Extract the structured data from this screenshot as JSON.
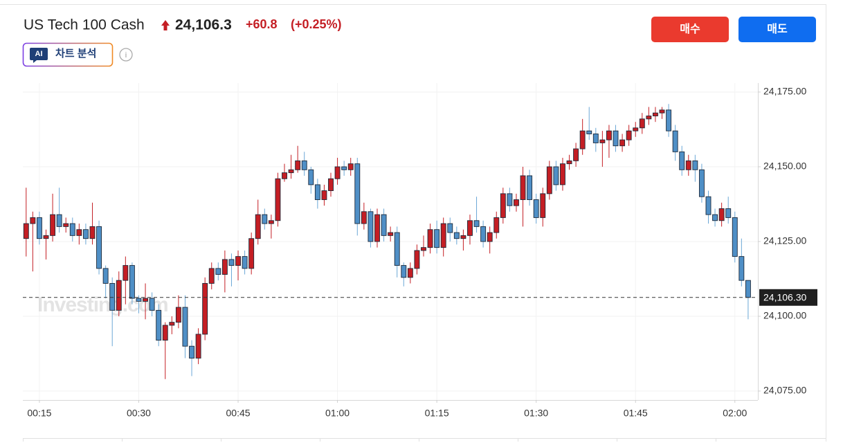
{
  "header": {
    "instrument": "US Tech 100 Cash",
    "price": "24,106.3",
    "change": "+60.8",
    "change_percent": "(+0.25%)",
    "buy_button": "매수",
    "sell_button": "매도",
    "ai_badge": "AI",
    "ai_label": "차트 분석",
    "info_icon": "i"
  },
  "chart_data": {
    "type": "candlestick",
    "watermark": "Investing.com",
    "x": [
      "00:13",
      "00:14",
      "00:15",
      "00:16",
      "00:17",
      "00:18",
      "00:19",
      "00:20",
      "00:21",
      "00:22",
      "00:23",
      "00:24",
      "00:25",
      "00:26",
      "00:27",
      "00:28",
      "00:29",
      "00:30",
      "00:31",
      "00:32",
      "00:33",
      "00:34",
      "00:35",
      "00:36",
      "00:37",
      "00:38",
      "00:39",
      "00:40",
      "00:41",
      "00:42",
      "00:43",
      "00:44",
      "00:45",
      "00:46",
      "00:47",
      "00:48",
      "00:49",
      "00:50",
      "00:51",
      "00:52",
      "00:53",
      "00:54",
      "00:55",
      "00:56",
      "00:57",
      "00:58",
      "00:59",
      "01:00",
      "01:01",
      "01:02",
      "01:03",
      "01:04",
      "01:05",
      "01:06",
      "01:07",
      "01:08",
      "01:09",
      "01:10",
      "01:11",
      "01:12",
      "01:13",
      "01:14",
      "01:15",
      "01:16",
      "01:17",
      "01:18",
      "01:19",
      "01:20",
      "01:21",
      "01:22",
      "01:23",
      "01:24",
      "01:25",
      "01:26",
      "01:27",
      "01:28",
      "01:29",
      "01:30",
      "01:31",
      "01:32",
      "01:33",
      "01:34",
      "01:35",
      "01:36",
      "01:37",
      "01:38",
      "01:39",
      "01:40",
      "01:41",
      "01:42",
      "01:43",
      "01:44",
      "01:45",
      "01:46",
      "01:47",
      "01:48",
      "01:49",
      "01:50",
      "01:51",
      "01:52",
      "01:53",
      "01:54",
      "01:55",
      "01:56",
      "01:57",
      "01:58",
      "01:59",
      "02:00",
      "02:01",
      "02:02"
    ],
    "xticks": [
      "00:15",
      "00:30",
      "00:45",
      "01:00",
      "01:15",
      "01:30",
      "01:45",
      "02:00"
    ],
    "series": [
      {
        "open": [
          24126,
          24131,
          24133,
          24126,
          24127,
          24134,
          24130,
          24131,
          24127,
          24129,
          24126,
          24130,
          24116,
          24111,
          24102,
          24112,
          24117,
          24106,
          24105,
          24106,
          24102,
          24092,
          24097,
          24098,
          24103,
          24090,
          24086,
          24094,
          24111,
          24116,
          24114,
          24119,
          24117,
          24120,
          24116,
          24126,
          24134,
          24131,
          24132,
          24146,
          24148,
          24149,
          24152,
          24149,
          24144,
          24139,
          24142,
          24146,
          24150,
          24149,
          24151,
          24131,
          24135,
          24125,
          24134,
          24127,
          24128,
          24117,
          24113,
          24116,
          24122,
          24123,
          24129,
          24123,
          24131,
          24128,
          24126,
          24127,
          24132,
          24130,
          24125,
          24128,
          24133,
          24141,
          24137,
          24139,
          24147,
          24139,
          24133,
          24141,
          24150,
          24144,
          24151,
          24152,
          24156,
          24162,
          24161,
          24158,
          24159,
          24162,
          24157,
          24159,
          24162,
          24163,
          24166,
          24167,
          24168,
          24169,
          24162,
          24155,
          24149,
          24152,
          24149,
          24140,
          24134,
          24132,
          24136,
          24133,
          24120,
          24112
        ],
        "high": [
          24143,
          24135,
          24135,
          24129,
          24141,
          24143,
          24133,
          24133,
          24131,
          24131,
          24138,
          24132,
          24117,
          24113,
          24115,
          24120,
          24118,
          24107,
          24111,
          24108,
          24104,
          24098,
          24100,
          24107,
          24107,
          24092,
          24096,
          24113,
          24118,
          24118,
          24122,
          24121,
          24122,
          24122,
          24128,
          24139,
          24136,
          24134,
          24148,
          24151,
          24154,
          24157,
          24155,
          24150,
          24146,
          24144,
          24148,
          24153,
          24152,
          24153,
          24153,
          24138,
          24136,
          24136,
          24136,
          24130,
          24130,
          24118,
          24118,
          24124,
          24127,
          24131,
          24132,
          24133,
          24133,
          24130,
          24129,
          24134,
          24140,
          24132,
          24130,
          24135,
          24143,
          24143,
          24141,
          24150,
          24149,
          24141,
          24143,
          24152,
          24152,
          24153,
          24154,
          24158,
          24166,
          24170,
          24163,
          24162,
          24164,
          24164,
          24161,
          24164,
          24165,
          24168,
          24170,
          24170,
          24170,
          24171,
          24164,
          24157,
          24154,
          24154,
          24151,
          24142,
          24136,
          24138,
          24140,
          24135,
          24126,
          24112
        ],
        "low": [
          24120,
          24115,
          24124,
          24119,
          24125,
          24128,
          24128,
          24125,
          24124,
          24124,
          24124,
          24114,
          24106,
          24090,
          24100,
          24104,
          24104,
          24101,
          24099,
          24100,
          24090,
          24079,
          24094,
          24096,
          24086,
          24080,
          24084,
          24092,
          24109,
          24112,
          24108,
          24110,
          24112,
          24114,
          24114,
          24124,
          24129,
          24126,
          24130,
          24145,
          24146,
          24148,
          24147,
          24141,
          24136,
          24137,
          24140,
          24144,
          24147,
          24147,
          24127,
          24129,
          24123,
          24123,
          24125,
          24125,
          24113,
          24110,
          24111,
          24114,
          24120,
          24121,
          24121,
          24120,
          24125,
          24124,
          24122,
          24124,
          24128,
          24123,
          24121,
          24126,
          24131,
          24135,
          24135,
          24130,
          24137,
          24131,
          24130,
          24139,
          24142,
          24142,
          24149,
          24150,
          24154,
          24159,
          24155,
          24150,
          24153,
          24155,
          24155,
          24157,
          24160,
          24161,
          24164,
          24165,
          24166,
          24160,
          24152,
          24147,
          24147,
          24145,
          24138,
          24131,
          24130,
          24130,
          24131,
          24118,
          24110,
          24099
        ],
        "close": [
          24131,
          24133,
          24126,
          24127,
          24134,
          24130,
          24131,
          24127,
          24129,
          24126,
          24130,
          24116,
          24111,
          24102,
          24112,
          24117,
          24106,
          24105,
          24106,
          24102,
          24092,
          24097,
          24098,
          24103,
          24090,
          24086,
          24094,
          24111,
          24116,
          24114,
          24119,
          24117,
          24120,
          24116,
          24126,
          24134,
          24131,
          24132,
          24146,
          24148,
          24149,
          24152,
          24149,
          24144,
          24139,
          24142,
          24146,
          24150,
          24149,
          24151,
          24131,
          24135,
          24125,
          24134,
          24127,
          24128,
          24117,
          24113,
          24116,
          24122,
          24123,
          24129,
          24123,
          24131,
          24128,
          24126,
          24127,
          24132,
          24130,
          24125,
          24128,
          24133,
          24141,
          24137,
          24139,
          24147,
          24139,
          24133,
          24141,
          24150,
          24144,
          24151,
          24152,
          24156,
          24162,
          24161,
          24158,
          24159,
          24162,
          24157,
          24159,
          24162,
          24163,
          24166,
          24167,
          24168,
          24169,
          24162,
          24155,
          24149,
          24152,
          24149,
          24140,
          24134,
          24132,
          24136,
          24133,
          24120,
          24112,
          24106.3
        ]
      }
    ],
    "up_color": "#c41e24",
    "down_color": "#4f8fc6",
    "ylim": [
      24072,
      24178
    ],
    "yticks": [
      {
        "value": 24075,
        "label": "24,075.00"
      },
      {
        "value": 24100,
        "label": "24,100.00"
      },
      {
        "value": 24125,
        "label": "24,125.00"
      },
      {
        "value": 24150,
        "label": "24,150.00"
      },
      {
        "value": 24175,
        "label": "24,175.00"
      }
    ],
    "last_price": {
      "value": 24106.3,
      "label": "24,106.30"
    },
    "grid": true
  }
}
